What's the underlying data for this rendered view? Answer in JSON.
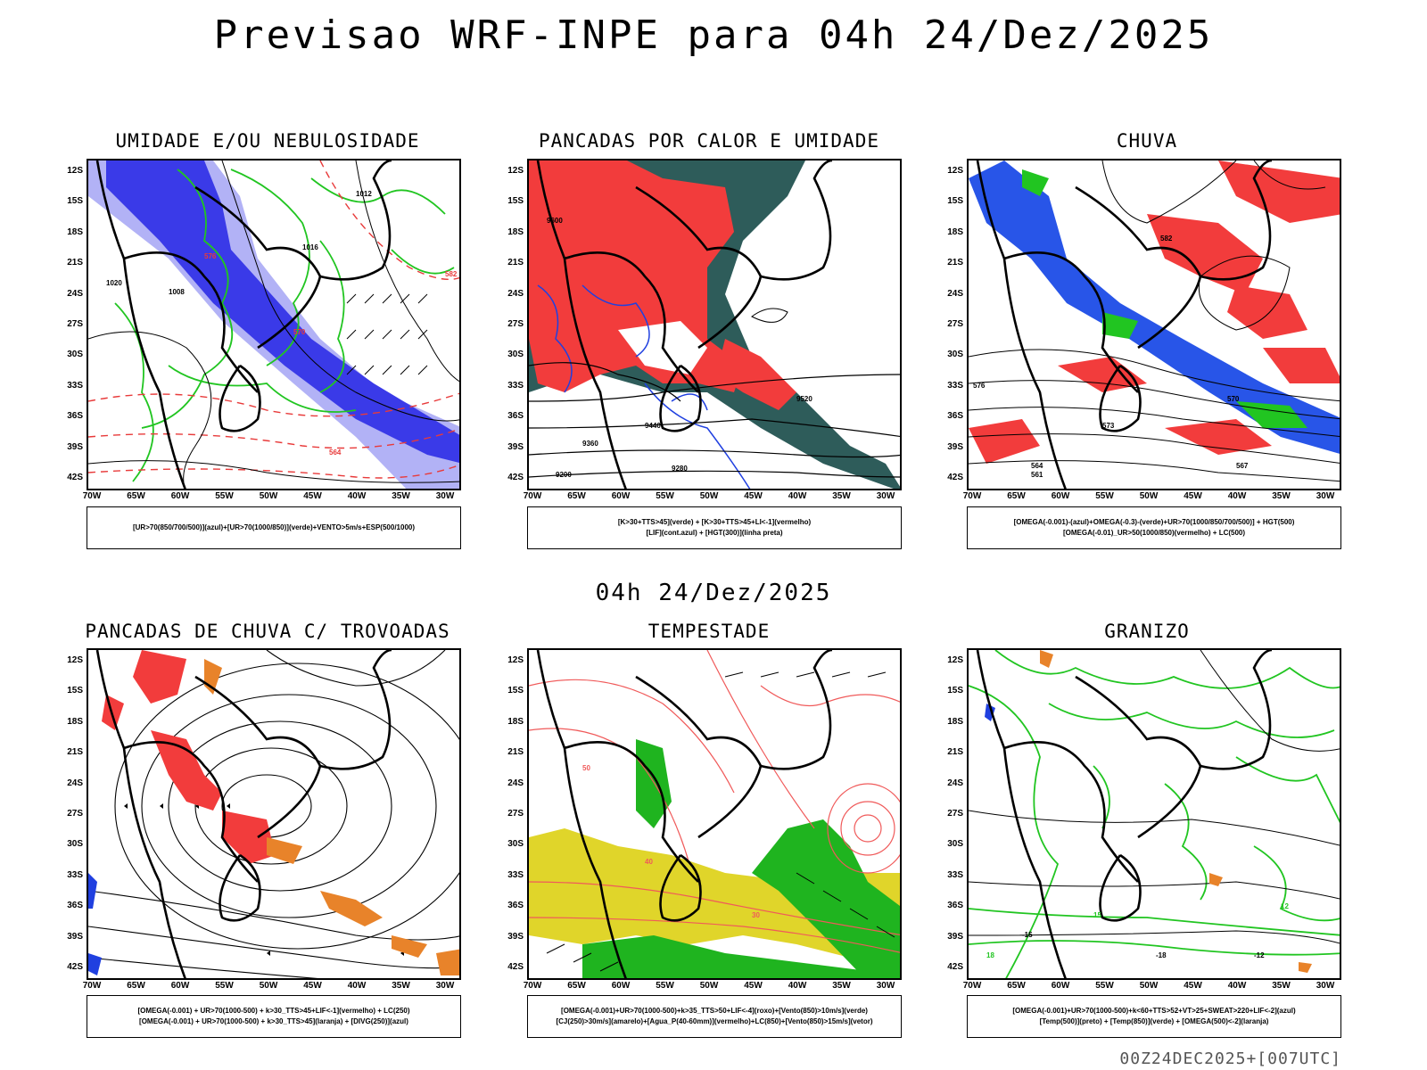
{
  "header": {
    "title": "Previsao WRF-INPE  para 04h 24/Dez/2025"
  },
  "middle": {
    "title": "04h 24/Dez/2025"
  },
  "footer": {
    "text": "00Z24DEC2025+[007UTC]"
  },
  "axes": {
    "lat": [
      "12S",
      "15S",
      "18S",
      "21S",
      "24S",
      "27S",
      "30S",
      "33S",
      "36S",
      "39S",
      "42S"
    ],
    "lon": [
      "70W",
      "65W",
      "60W",
      "55W",
      "50W",
      "45W",
      "40W",
      "35W",
      "30W"
    ]
  },
  "panels": [
    {
      "id": "umidade",
      "title": "UMIDADE E/OU NEBULOSIDADE",
      "legend": [
        "[UR>70(850/700/500)](azul)+[UR>70(1000/850)](verde)+VENTO>5m/s+ESP(500/1000)"
      ],
      "contour_labels": [
        "1012",
        "1008",
        "1016",
        "1020",
        "570",
        "576",
        "582",
        "564"
      ],
      "colors": {
        "a": "#3a3ae8",
        "b": "#aaaaf5",
        "c": "#21c521",
        "d": "#e83a3a"
      }
    },
    {
      "id": "pancadas",
      "title": "PANCADAS POR CALOR E UMIDADE",
      "legend": [
        "[K>30+TTS>45](verde)  +  [K>30+TTS>45+LI<-1](vermelho)",
        "[LIF](cont.azul)  +  [HGT(300)](linha preta)"
      ],
      "contour_labels": [
        "9600",
        "9520",
        "9440",
        "9360",
        "9280",
        "9200"
      ],
      "colors": {
        "a": "#f23c3c",
        "b": "#2e5c5a",
        "c": "#2040e0",
        "d": "#000000"
      }
    },
    {
      "id": "chuva",
      "title": "CHUVA",
      "legend": [
        "[OMEGA(-0.001)-(azul)+OMEGA(-0.3)-(verde)+UR>70(1000/850/700/500)]  +  HGT(500)",
        "[OMEGA(-0.01)_UR>50(1000/850)(vermelho)  +  LC(500)"
      ],
      "contour_labels": [
        "582",
        "576",
        "570",
        "564",
        "573",
        "567",
        "561"
      ],
      "colors": {
        "a": "#f23c3c",
        "b": "#2855e8",
        "c": "#21c521",
        "d": "#000000"
      }
    },
    {
      "id": "trovoadas",
      "title": "PANCADAS DE CHUVA C/ TROVOADAS",
      "legend": [
        "[OMEGA(-0.001)  +  UR>70(1000-500)  +  k>30_TTS>45+LIF<-1](vermelho)  +  LC(250)",
        "[OMEGA(-0.001)  +  UR>70(1000-500)  +  k>30_TTS>45](laranja)  +  [DIVG(250)](azul)"
      ],
      "contour_labels": [],
      "colors": {
        "a": "#f23c3c",
        "b": "#e8832a",
        "c": "#2040e0",
        "d": "#000000"
      }
    },
    {
      "id": "tempestade",
      "title": "TEMPESTADE",
      "legend": [
        "[OMEGA(-0.001)+UR>70(1000-500)+k>35_TTS>50+LIF<-4](roxo)+[Vento(850)>10m/s](verde)",
        "[CJ(250)>30m/s](amarelo)+[Agua_P(40-60mm)](vermelho)+LC(850)+[Vento(850)>15m/s](vetor)"
      ],
      "contour_labels": [
        "50",
        "40",
        "30"
      ],
      "colors": {
        "a": "#e0d52a",
        "b": "#1fb41f",
        "c": "#f05a5a",
        "d": "#000000"
      }
    },
    {
      "id": "granizo",
      "title": "GRANIZO",
      "legend": [
        "[OMEGA(-0.001)+UR>70(1000-500)+k<60+TTS>52+VT>25+SWEAT>220+LIF<-2](azul)",
        "[Temp(500)](preto)  +  [Temp(850)](verde)  +  [OMEGA(500)<-2](laranja)"
      ],
      "contour_labels": [
        "-12",
        "-15",
        "-18",
        "12",
        "15",
        "18"
      ],
      "colors": {
        "a": "#21c521",
        "b": "#e8832a",
        "c": "#2040e0",
        "d": "#000000"
      }
    }
  ]
}
